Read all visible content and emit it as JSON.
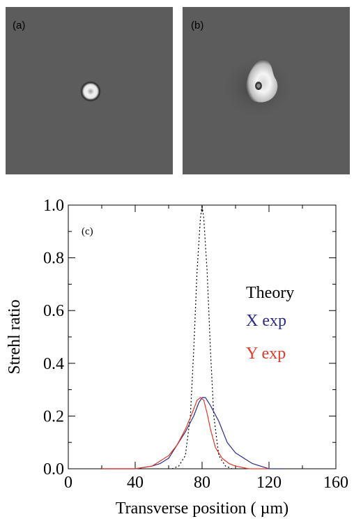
{
  "panels": [
    {
      "label": "(a)"
    },
    {
      "label": "(b)"
    }
  ],
  "colors": {
    "panel_bg": "#5c5c5c",
    "theory": "#000000",
    "x_exp": "#2a2a8c",
    "y_exp": "#e03a2a"
  },
  "chart_data": {
    "type": "line",
    "panel_label": "(c)",
    "title": "",
    "xlabel": "Transverse position ( µm)",
    "ylabel": "Strehl ratio",
    "xlim": [
      0,
      160
    ],
    "ylim": [
      0,
      1.0
    ],
    "xticks": [
      "0",
      "40",
      "80",
      "120",
      "160"
    ],
    "yticks": [
      "0.0",
      "0.2",
      "0.4",
      "0.6",
      "0.8",
      "1.0"
    ],
    "grid": false,
    "legend_position": "center-right",
    "series": [
      {
        "name": "Theory",
        "style": "dotted",
        "x": [
          62,
          66,
          70,
          73,
          75,
          77,
          79,
          80,
          81,
          83,
          85,
          87,
          90,
          94,
          98
        ],
        "y": [
          0.0,
          0.01,
          0.05,
          0.2,
          0.45,
          0.75,
          0.95,
          1.0,
          0.95,
          0.75,
          0.45,
          0.2,
          0.05,
          0.01,
          0.0
        ]
      },
      {
        "name": "X exp",
        "style": "solid",
        "x": [
          20,
          40,
          50,
          55,
          60,
          65,
          70,
          75,
          78,
          80,
          82,
          85,
          90,
          95,
          100,
          105,
          110,
          115,
          120,
          128
        ],
        "y": [
          0.0,
          0.0,
          0.01,
          0.02,
          0.04,
          0.09,
          0.14,
          0.2,
          0.25,
          0.27,
          0.27,
          0.24,
          0.18,
          0.1,
          0.06,
          0.04,
          0.02,
          0.01,
          0.0,
          0.0
        ]
      },
      {
        "name": "Y exp",
        "style": "solid",
        "x": [
          20,
          40,
          50,
          55,
          60,
          65,
          70,
          74,
          77,
          79,
          81,
          83,
          85,
          88,
          92,
          96,
          100,
          108,
          120
        ],
        "y": [
          0.0,
          0.0,
          0.01,
          0.03,
          0.05,
          0.09,
          0.15,
          0.21,
          0.26,
          0.27,
          0.26,
          0.21,
          0.15,
          0.08,
          0.04,
          0.02,
          0.01,
          0.0,
          0.0
        ]
      }
    ]
  }
}
